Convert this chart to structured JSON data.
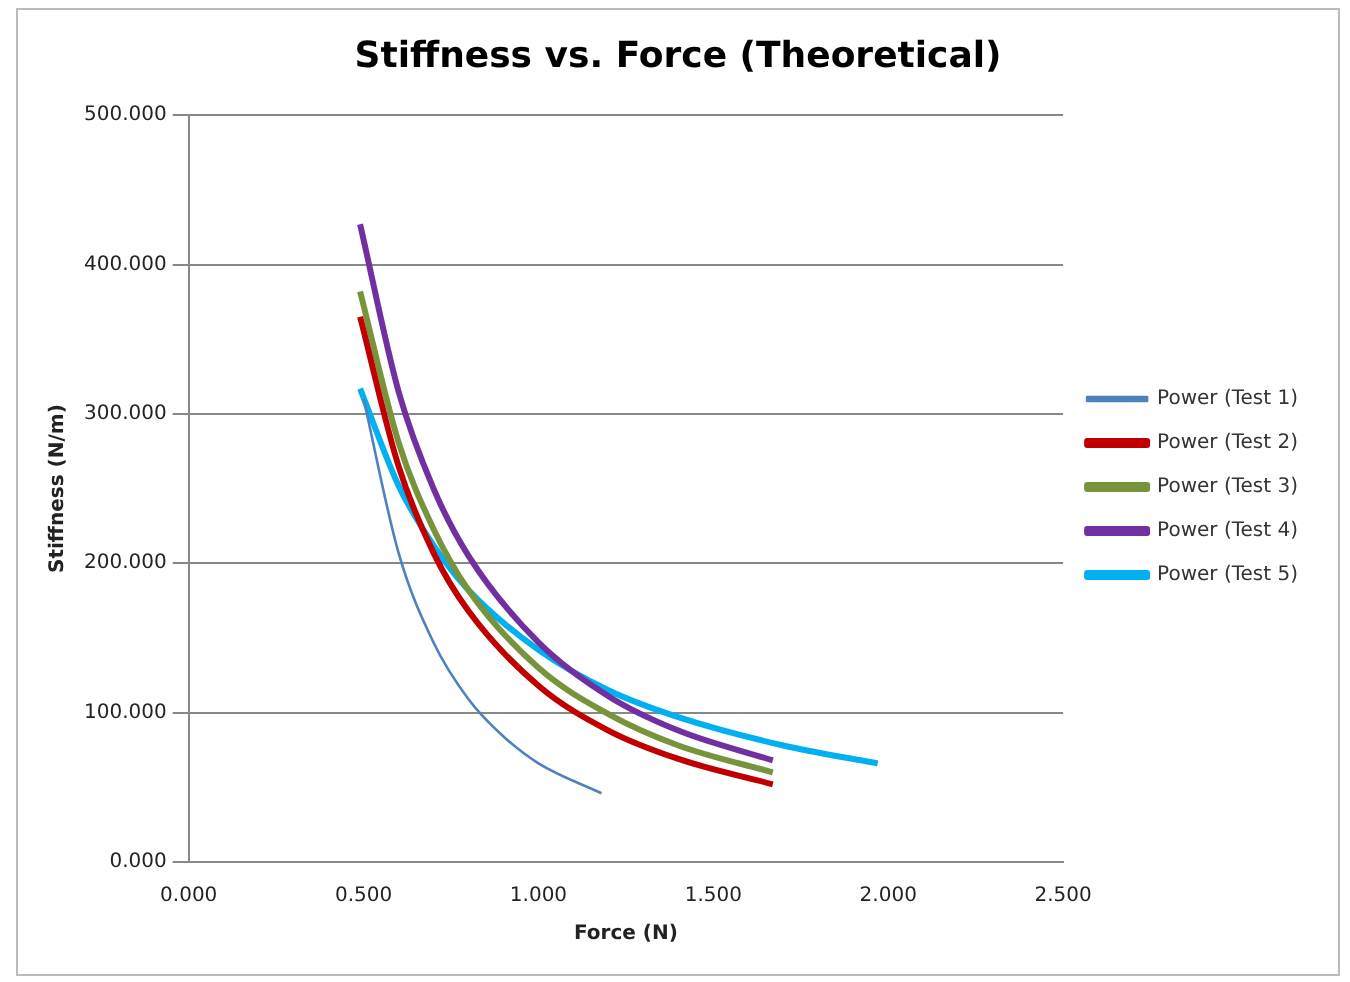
{
  "chart_data": {
    "type": "line",
    "title": "Stiffness vs. Force (Theoretical)",
    "xlabel": "Force (N)",
    "ylabel": "Stiffness (N/m)",
    "xlim": [
      0,
      2.5
    ],
    "xticks": [
      {
        "value": 0,
        "label": "0.000"
      },
      {
        "value": 0.5,
        "label": "0.500"
      },
      {
        "value": 1,
        "label": "1.000"
      },
      {
        "value": 1.5,
        "label": "1.500"
      },
      {
        "value": 2,
        "label": "2.000"
      },
      {
        "value": 2.5,
        "label": "2.500"
      }
    ],
    "ylim": [
      0,
      500
    ],
    "yticks": [
      {
        "value": 0,
        "label": "0.000"
      },
      {
        "value": 100,
        "label": "100.000"
      },
      {
        "value": 200,
        "label": "200.000"
      },
      {
        "value": 300,
        "label": "300.000"
      },
      {
        "value": 400,
        "label": "400.000"
      },
      {
        "value": 500,
        "label": "500.000"
      }
    ],
    "grid": "y",
    "legend": "right",
    "marker": "none",
    "series": [
      {
        "name": "Power (Test 1)",
        "color": "#4f81bd",
        "x": [
          0.5,
          0.6,
          0.7,
          0.8,
          0.9,
          1.0,
          1.18
        ],
        "values": [
          310,
          207,
          147,
          109,
          84,
          66,
          46
        ]
      },
      {
        "name": "Power (Test 2)",
        "color": "#c00000",
        "x": [
          0.49,
          0.6,
          0.7,
          0.8,
          1.0,
          1.2,
          1.4,
          1.67
        ],
        "values": [
          365,
          265,
          207,
          168,
          118,
          88,
          69,
          52
        ]
      },
      {
        "name": "Power (Test 3)",
        "color": "#77933c",
        "x": [
          0.49,
          0.6,
          0.7,
          0.8,
          1.0,
          1.2,
          1.4,
          1.67
        ],
        "values": [
          382,
          281,
          223,
          182,
          130,
          99,
          78,
          60
        ]
      },
      {
        "name": "Power (Test 4)",
        "color": "#7030a0",
        "x": [
          0.49,
          0.6,
          0.7,
          0.8,
          1.0,
          1.2,
          1.4,
          1.67
        ],
        "values": [
          427,
          315,
          250,
          205,
          147,
          111,
          88,
          68
        ]
      },
      {
        "name": "Power (Test 5)",
        "color": "#00b0f0",
        "x": [
          0.49,
          0.6,
          0.7,
          0.8,
          1.0,
          1.2,
          1.4,
          1.7,
          1.97
        ],
        "values": [
          317,
          252,
          212,
          182,
          142,
          115,
          97,
          78,
          66
        ]
      }
    ]
  }
}
